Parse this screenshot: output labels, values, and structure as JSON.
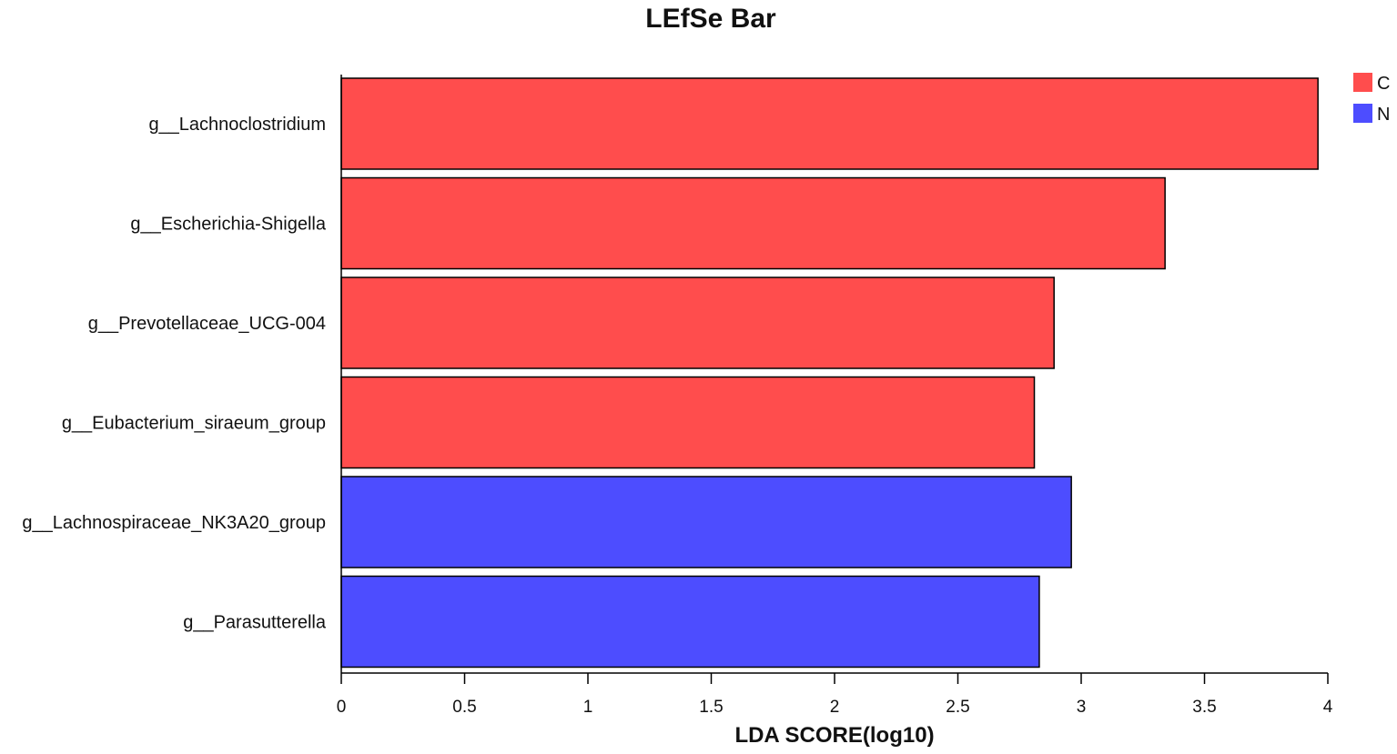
{
  "chart_data": {
    "type": "bar",
    "orientation": "horizontal",
    "title": "LEfSe Bar",
    "xlabel": "LDA SCORE(log10)",
    "ylabel": "",
    "xlim": [
      0,
      4
    ],
    "xticks": [
      "0",
      "0.5",
      "1",
      "1.5",
      "2",
      "2.5",
      "3",
      "3.5",
      "4"
    ],
    "grid": false,
    "legend_position": "top-right",
    "groups": [
      {
        "name": "C",
        "color": "#ff4d4d"
      },
      {
        "name": "N",
        "color": "#4d4dff"
      }
    ],
    "bars": [
      {
        "category": "g__Lachnoclostridium",
        "value": 3.96,
        "group": "C"
      },
      {
        "category": "g__Escherichia-Shigella",
        "value": 3.34,
        "group": "C"
      },
      {
        "category": "g__Prevotellaceae_UCG-004",
        "value": 2.89,
        "group": "C"
      },
      {
        "category": "g__Eubacterium_siraeum_group",
        "value": 2.81,
        "group": "C"
      },
      {
        "category": "g__Lachnospiraceae_NK3A20_group",
        "value": 2.96,
        "group": "N"
      },
      {
        "category": "g__Parasutterella",
        "value": 2.83,
        "group": "N"
      }
    ]
  }
}
